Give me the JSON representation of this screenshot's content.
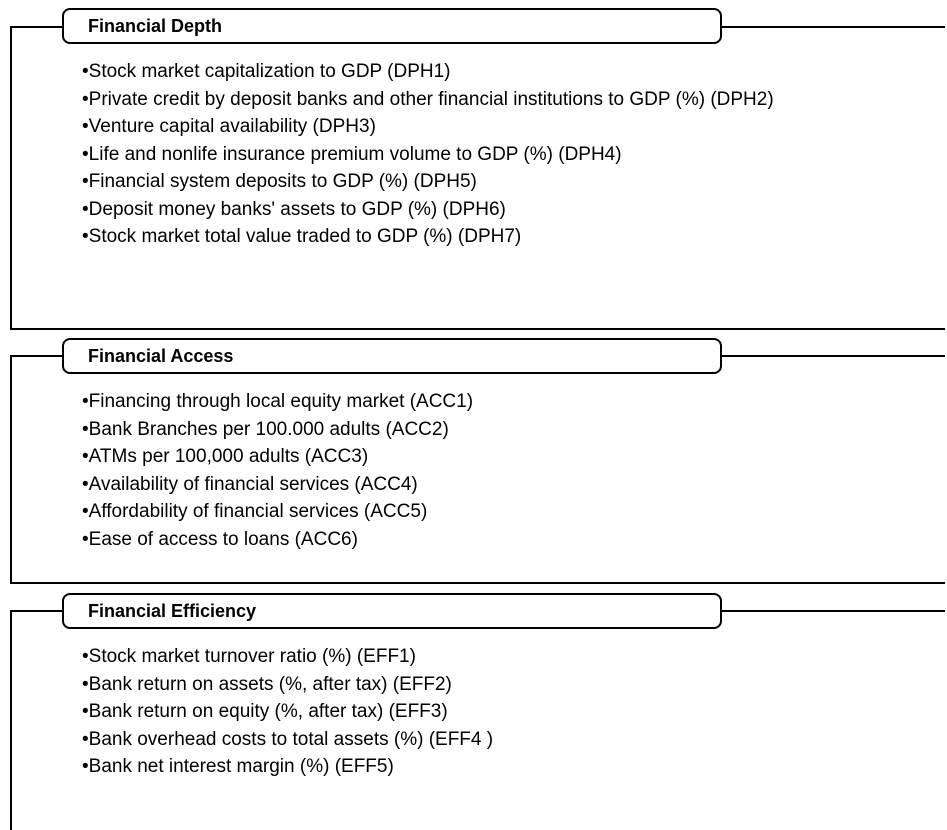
{
  "sections": [
    {
      "title": "Financial Depth",
      "items": [
        "•Stock market capitalization to GDP (DPH1)",
        "•Private credit by deposit banks and other financial institutions to GDP (%) (DPH2)",
        "•Venture capital availability (DPH3)",
        "•Life and nonlife insurance premium volume to GDP (%)  (DPH4)",
        "•Financial system deposits to GDP (%) (DPH5)",
        "•Deposit money banks' assets to GDP (%) (DPH6)",
        "•Stock market total value traded to GDP (%) (DPH7)"
      ]
    },
    {
      "title": "Financial Access",
      "items": [
        "•Financing through local equity market (ACC1)",
        "•Bank Branches per 100.000 adults (ACC2)",
        "•ATMs per 100,000 adults (ACC3)",
        "•Availability of financial services (ACC4)",
        "•Affordability of financial services (ACC5)",
        "•Ease of access to loans (ACC6)"
      ]
    },
    {
      "title": "Financial Efficiency",
      "items": [
        "•Stock market turnover ratio (%) (EFF1)",
        "•Bank return on assets (%, after tax) (EFF2)",
        "•Bank return on equity (%, after tax) (EFF3)",
        "•Bank overhead costs to total assets (%) (EFF4 )",
        "•Bank net interest margin (%) (EFF5)"
      ]
    }
  ]
}
